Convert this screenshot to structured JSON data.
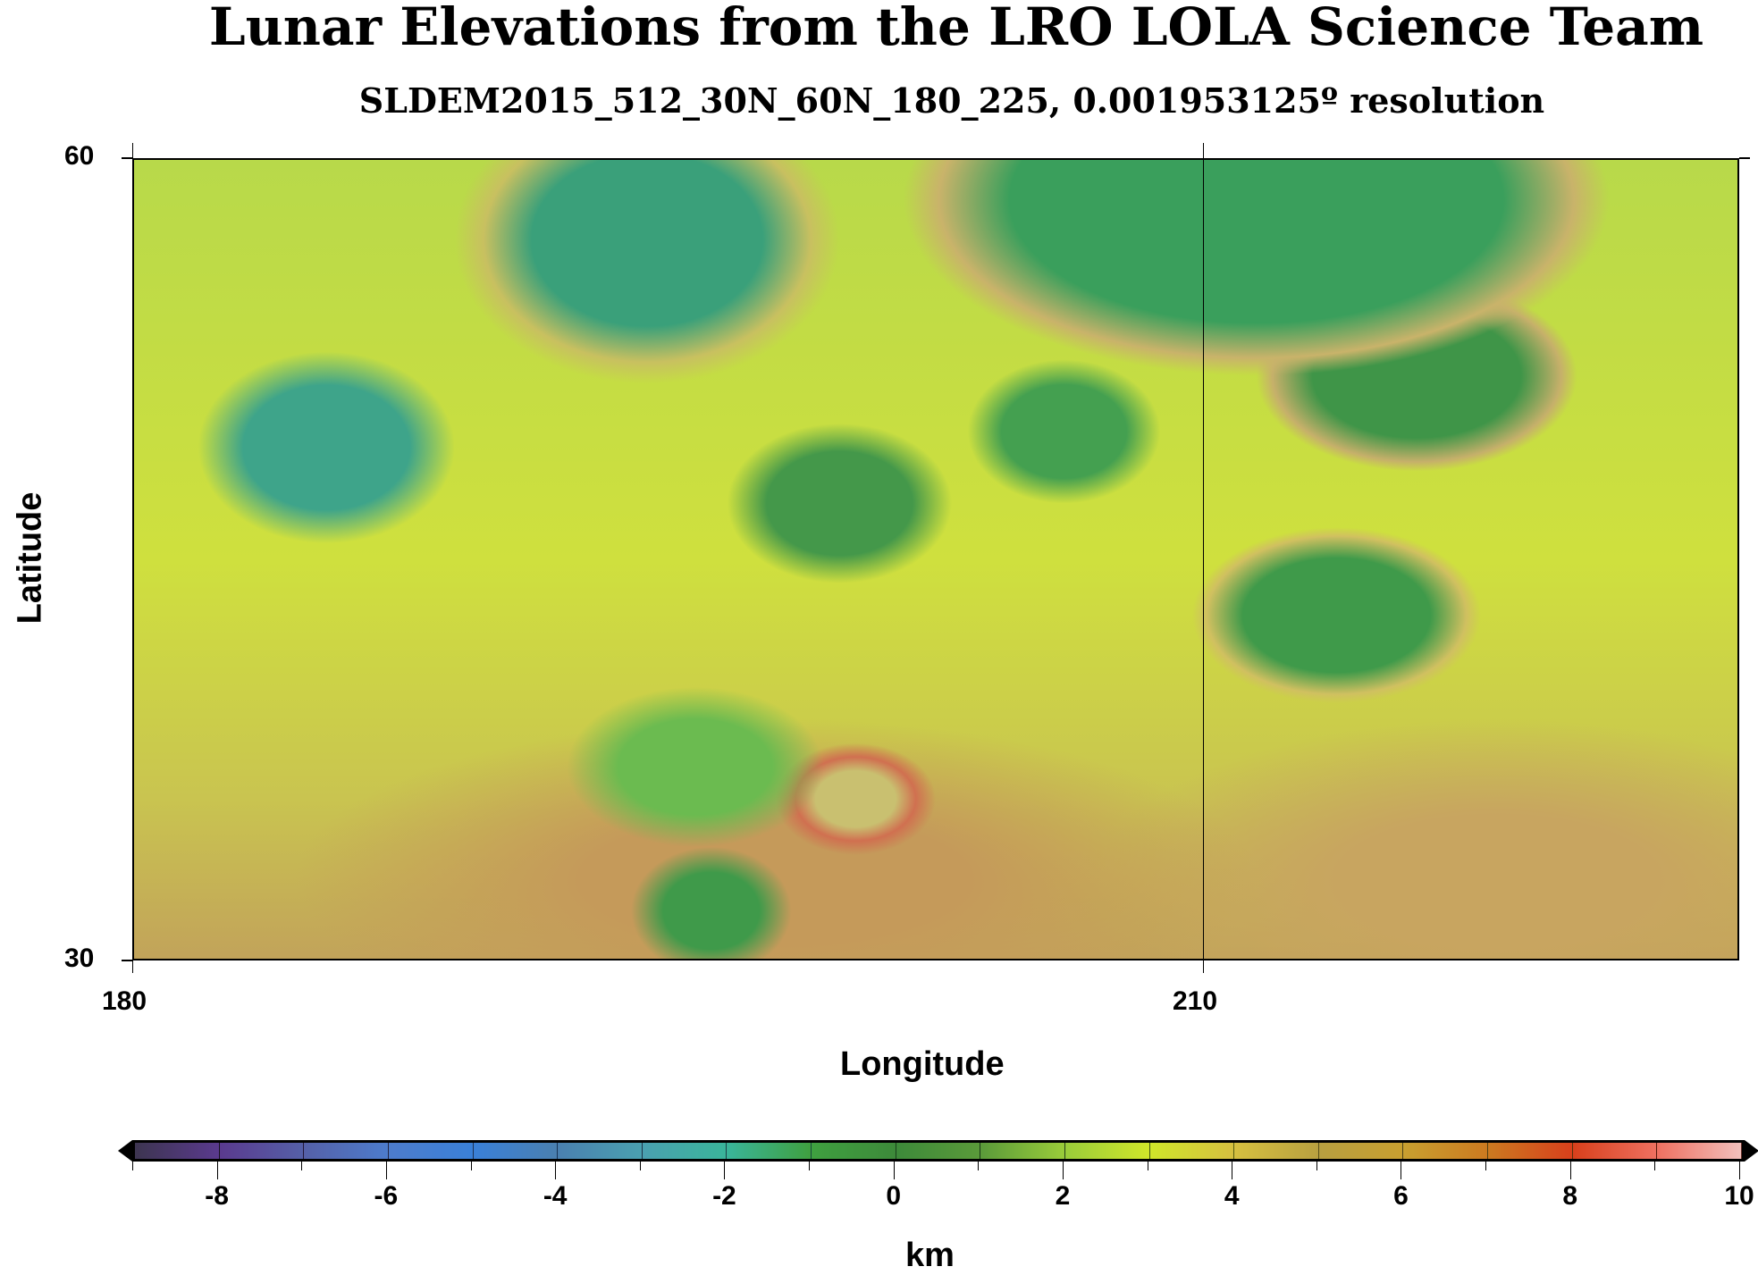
{
  "chart_data": {
    "type": "heatmap",
    "title": "Lunar Elevations from the LRO LOLA Science Team",
    "subtitle": "SLDEM2015_512_30N_60N_180_225, 0.001953125º resolution",
    "xlabel": "Longitude",
    "ylabel": "Latitude",
    "xlim": [
      180,
      225
    ],
    "ylim": [
      30,
      60
    ],
    "xticks": [
      "180",
      "210"
    ],
    "yticks": [
      "60",
      "30"
    ],
    "grid": true,
    "colorbar": {
      "label": "km",
      "range": [
        -9,
        10
      ],
      "ticks": [
        "-8",
        "-6",
        "-4",
        "-2",
        "0",
        "2",
        "4",
        "6",
        "8",
        "10"
      ],
      "colors": [
        "#3d3550",
        "#5a3a8e",
        "#5560a8",
        "#4d7ccc",
        "#3a80d8",
        "#4a80b0",
        "#4aa0b0",
        "#3ab59a",
        "#3fa040",
        "#3d8a3a",
        "#5a9a3a",
        "#9acc3a",
        "#d0e62a",
        "#d6c040",
        "#b8a040",
        "#c8a030",
        "#cc7a20",
        "#d8401c",
        "#ee7060",
        "#f2c0bc",
        "#f8f0f0"
      ],
      "segment_colors_note": ""
    }
  }
}
